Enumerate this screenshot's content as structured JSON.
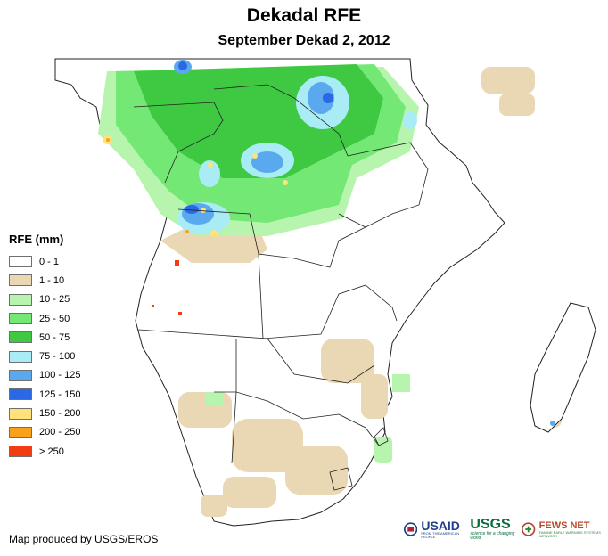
{
  "title": "Dekadal RFE",
  "subtitle": "September Dekad 2, 2012",
  "legend": {
    "title": "RFE (mm)",
    "items": [
      {
        "label": "0 - 1",
        "color": "#ffffff"
      },
      {
        "label": "1 - 10",
        "color": "#ead7b4"
      },
      {
        "label": "10 - 25",
        "color": "#b7f5ae"
      },
      {
        "label": "25 - 50",
        "color": "#74e874"
      },
      {
        "label": "50 - 75",
        "color": "#3fc943"
      },
      {
        "label": "75 - 100",
        "color": "#a9ecf5"
      },
      {
        "label": "100 - 125",
        "color": "#5aa9ee"
      },
      {
        "label": "125 - 150",
        "color": "#2a68e6"
      },
      {
        "label": "150 - 200",
        "color": "#ffe27a"
      },
      {
        "label": "200 - 250",
        "color": "#f9a11b"
      },
      {
        "label": "> 250",
        "color": "#f23c12"
      }
    ]
  },
  "credit": "Map produced by USGS/EROS",
  "logos": {
    "usaid": "USAID",
    "usaid_sub": "FROM THE AMERICAN PEOPLE",
    "usgs": "USGS",
    "usgs_sub": "science for a changing world",
    "fews": "FEWS NET",
    "fews_sub": "FAMINE EARLY WARNING SYSTEMS NETWORK"
  }
}
